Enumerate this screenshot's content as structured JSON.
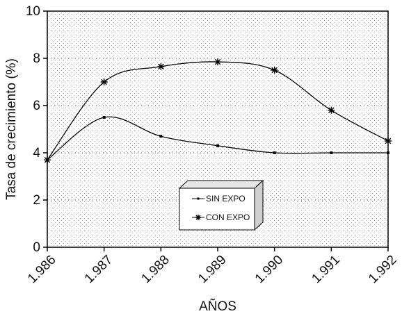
{
  "chart_data": {
    "type": "line",
    "title": "",
    "xlabel": "AÑOS",
    "ylabel": "Tasa de crecimiento (%)",
    "x": [
      "1.986",
      "1.987",
      "1.988",
      "1.989",
      "1.990",
      "1.991",
      "1.992"
    ],
    "x_values": [
      1986,
      1987,
      1988,
      1989,
      1990,
      1991,
      1992
    ],
    "ylim": [
      0,
      10
    ],
    "yticks": [
      "0",
      "2",
      "4",
      "6",
      "8",
      "10"
    ],
    "series": [
      {
        "name": "SIN EXPO",
        "marker": "dot",
        "values": [
          3.7,
          5.5,
          4.7,
          4.3,
          4.0,
          4.0,
          4.0
        ]
      },
      {
        "name": "CON EXPO",
        "marker": "asterisk",
        "values": [
          3.7,
          7.0,
          7.65,
          7.85,
          7.5,
          5.8,
          4.5
        ]
      }
    ],
    "grid": true,
    "smooth": true,
    "legend_position": "lower-center"
  }
}
